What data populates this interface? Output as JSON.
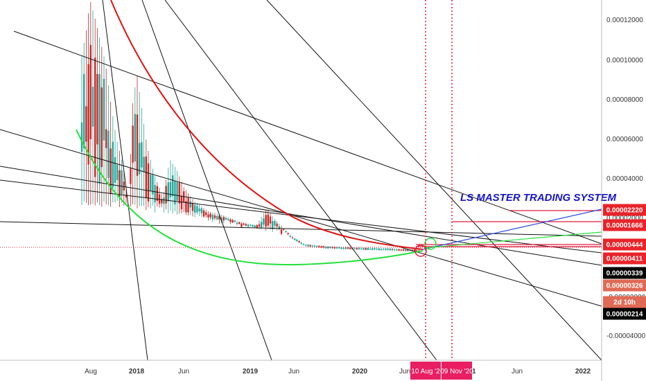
{
  "chart_data": {
    "type": "candlestick",
    "annotation": "LS MASTER TRADING SYSTEM",
    "price_axis_ticks": [
      "0.00012000",
      "0.00010000",
      "0.00008000",
      "0.00006000",
      "0.00004000",
      "0.00002000",
      "-0.00002000",
      "-0.00004000"
    ],
    "time_axis_ticks": [
      {
        "label": "Aug",
        "bold": false
      },
      {
        "label": "2018",
        "bold": true
      },
      {
        "label": "Jun",
        "bold": false
      },
      {
        "label": "2019",
        "bold": true
      },
      {
        "label": "Jun",
        "bold": false
      },
      {
        "label": "2020",
        "bold": true
      },
      {
        "label": "Jun",
        "bold": false
      },
      {
        "label": "21",
        "bold": true
      },
      {
        "label": "Jun",
        "bold": false
      },
      {
        "label": "2022",
        "bold": true
      }
    ],
    "price_labels": [
      {
        "text": "0.00002220",
        "color": "#e8232a",
        "text_color": "#ffffff"
      },
      {
        "text": "0.00001666",
        "color": "#e8232a",
        "text_color": "#ffffff"
      },
      {
        "text": "0.00000444",
        "color": "#e8232a",
        "text_color": "#ffffff"
      },
      {
        "text": "0.00000411",
        "color": "#e8232a",
        "text_color": "#ffffff"
      },
      {
        "text": "0.00000339",
        "color": "#000000",
        "text_color": "#ffffff"
      },
      {
        "text": "0.00000326",
        "color": "#e06a55",
        "text_color": "#ffffff"
      },
      {
        "text": "2d 10h",
        "color": "#e06a55",
        "text_color": "#ffffff"
      },
      {
        "text": "0.00000214",
        "color": "#000000",
        "text_color": "#ffffff"
      }
    ],
    "date_markers": [
      {
        "label": "10 Aug '2",
        "color": "#e91e63"
      },
      {
        "label": "09 Nov '20",
        "color": "#e91e63"
      }
    ],
    "colors": {
      "up_candle": "#26a69a",
      "down_candle": "#c62828",
      "red_curve": "#e01010",
      "green_curve": "#22e03a",
      "blue_line": "#2a4de0",
      "trend_lines": "#111111",
      "marker_line": "#e01a3a"
    },
    "grid": false
  }
}
